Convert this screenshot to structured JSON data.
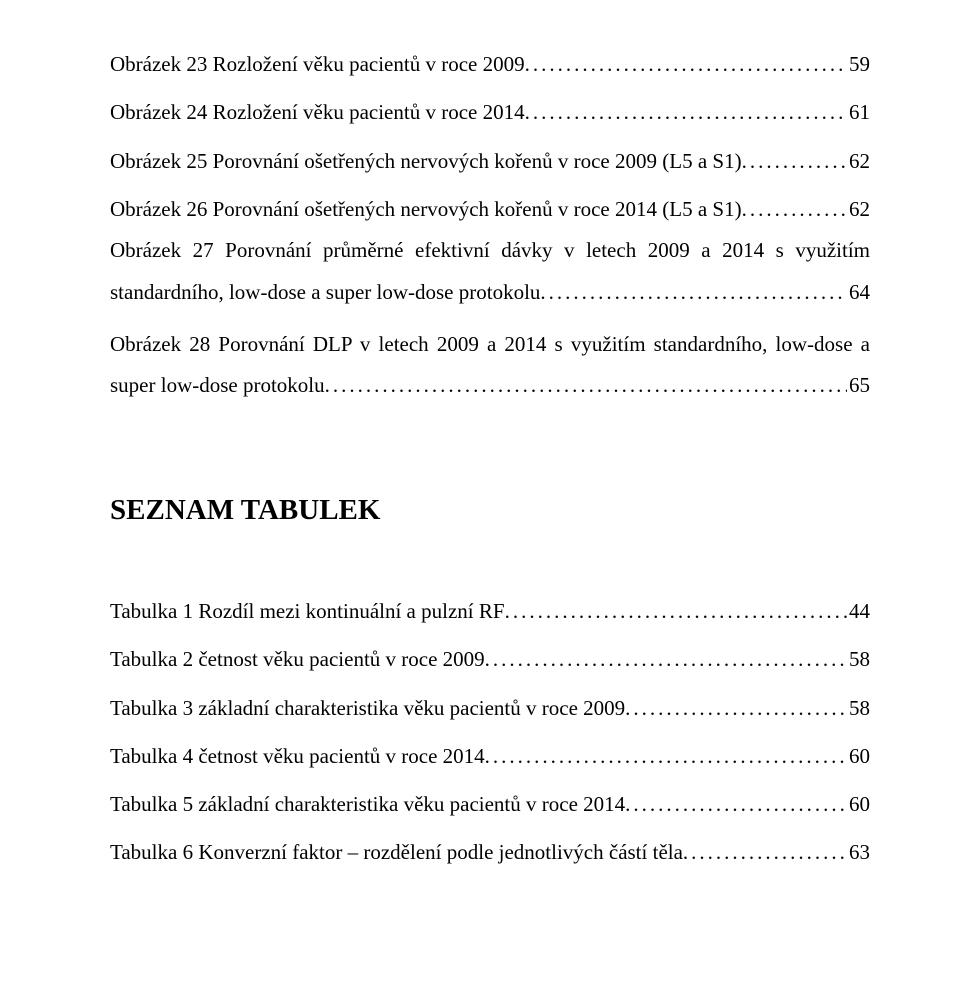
{
  "figures": [
    {
      "label": "Obrázek 23 Rozložení věku pacientů v roce 2009",
      "page": "59",
      "multiline": false
    },
    {
      "label": "Obrázek 24 Rozložení věku pacientů v roce 2014",
      "page": "61",
      "multiline": false
    },
    {
      "label": "Obrázek 25 Porovnání ošetřených nervových kořenů v roce 2009 (L5 a S1)",
      "page": "62",
      "multiline": false
    },
    {
      "label": "Obrázek 26 Porovnání ošetřených nervových kořenů v roce 2014 (L5 a S1)",
      "page": "62",
      "multiline": false
    },
    {
      "line1": "Obrázek 27 Porovnání průměrné efektivní dávky v letech 2009 a 2014 s využitím",
      "line2": "standardního, low-dose a super low-dose protokolu",
      "page": "64",
      "multiline": true
    },
    {
      "line1": "Obrázek 28 Porovnání DLP v letech 2009 a 2014 s využitím standardního, low-dose a",
      "line2": "super low-dose protokolu",
      "page": "65",
      "multiline": true
    }
  ],
  "tables_heading": "SEZNAM TABULEK",
  "tables": [
    {
      "label": "Tabulka 1 Rozdíl mezi kontinuální a pulzní RF",
      "page": "44"
    },
    {
      "label": "Tabulka 2 četnost věku pacientů v roce 2009",
      "page": "58"
    },
    {
      "label": "Tabulka 3 základní charakteristika věku pacientů v roce 2009",
      "page": "58"
    },
    {
      "label": "Tabulka 4 četnost věku pacientů v roce 2014",
      "page": "60"
    },
    {
      "label": "Tabulka 5 základní charakteristika věku pacientů v roce 2014",
      "page": "60"
    },
    {
      "label": "Tabulka 6 Konverzní faktor – rozdělení podle jednotlivých částí těla",
      "page": "63"
    }
  ]
}
